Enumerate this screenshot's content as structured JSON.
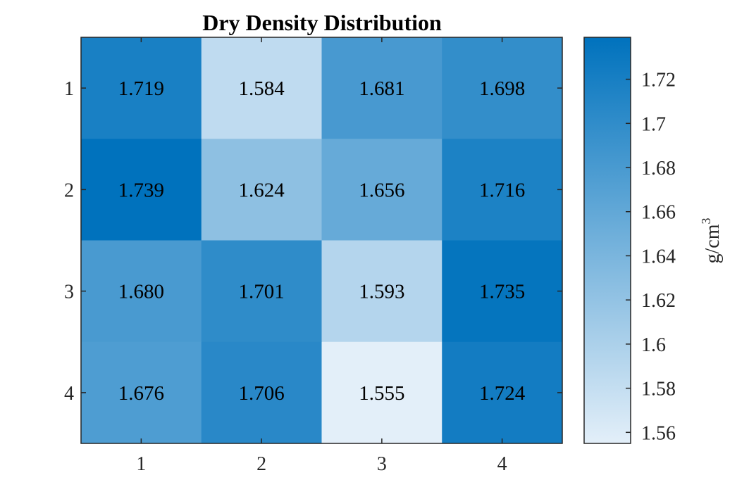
{
  "chart_data": {
    "type": "heatmap",
    "title": "Dry Density Distribution",
    "x_ticks": [
      "1",
      "2",
      "3",
      "4"
    ],
    "y_ticks": [
      "1",
      "2",
      "3",
      "4"
    ],
    "values": [
      [
        1.719,
        1.584,
        1.681,
        1.698
      ],
      [
        1.739,
        1.624,
        1.656,
        1.716
      ],
      [
        1.68,
        1.701,
        1.593,
        1.735
      ],
      [
        1.676,
        1.706,
        1.555,
        1.724
      ]
    ],
    "value_labels": [
      [
        "1.719",
        "1.584",
        "1.681",
        "1.698"
      ],
      [
        "1.739",
        "1.624",
        "1.656",
        "1.716"
      ],
      [
        "1.680",
        "1.701",
        "1.593",
        "1.735"
      ],
      [
        "1.676",
        "1.706",
        "1.555",
        "1.724"
      ]
    ],
    "colorbar": {
      "label": "g/cm",
      "label_superscript": "3",
      "limits": [
        1.555,
        1.739
      ],
      "ticks": [
        1.56,
        1.58,
        1.6,
        1.62,
        1.64,
        1.66,
        1.68,
        1.7,
        1.72
      ],
      "tick_labels": [
        "1.56",
        "1.58",
        "1.6",
        "1.62",
        "1.64",
        "1.66",
        "1.68",
        "1.7",
        "1.72"
      ],
      "color_low": "#e3eff9",
      "color_high": "#0072bd"
    },
    "axis_color": "#262626"
  }
}
